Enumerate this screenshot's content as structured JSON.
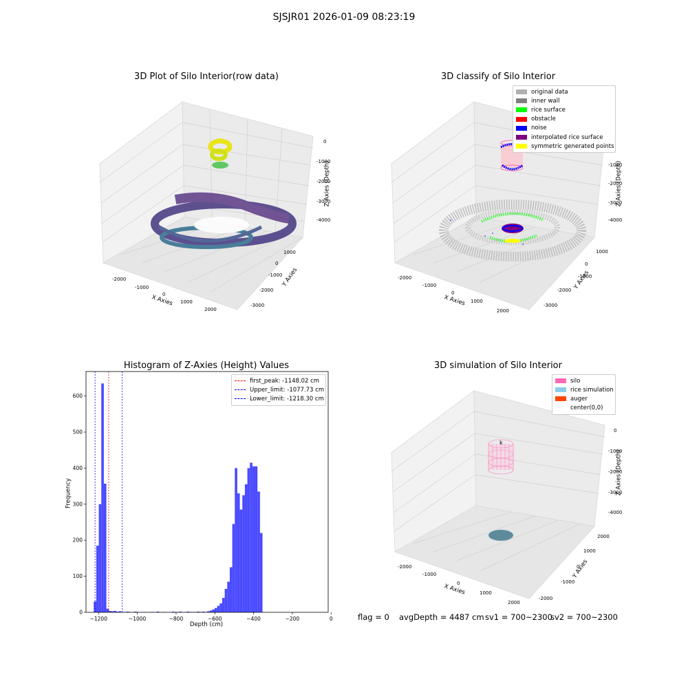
{
  "figure": {
    "suptitle": "SJSJR01 2026-01-09 08:23:19",
    "footer": {
      "flag": "flag = 0",
      "avg_depth": "avgDepth = 4487 cm",
      "sv1": "sv1 = 700~2300",
      "sv2": "sv2 = 700~2300"
    }
  },
  "chart_data": [
    {
      "type": "scatter",
      "title": "3D Plot of Silo Interior(row data)",
      "xlabel": "X Axies",
      "ylabel": "Y Axies",
      "zlabel": "Z Axies (Depth)",
      "xticks": [
        "-2000",
        "-1000",
        "0",
        "1000",
        "2000"
      ],
      "yticks": [
        "1000",
        "0",
        "-1000",
        "-2000",
        "-3000"
      ],
      "zticks": [
        "0",
        "-1000",
        "-2000",
        "-3000",
        "-4000"
      ],
      "colormap": "viridis"
    },
    {
      "type": "scatter",
      "title": "3D classify of Silo Interior",
      "xlabel": "X Axies",
      "ylabel": "Y Axies",
      "zlabel": "Z Axies (Depth)",
      "xticks": [
        "-2000",
        "-1000",
        "0",
        "1000",
        "2000"
      ],
      "yticks": [
        "1000",
        "0",
        "-1000",
        "-2000",
        "-3000"
      ],
      "zticks": [
        "-1000",
        "-2000",
        "-3000",
        "-4000"
      ],
      "legend": [
        {
          "label": "original data",
          "color": "#b0b0b0"
        },
        {
          "label": "inner wall",
          "color": "#808080"
        },
        {
          "label": "rice surface",
          "color": "#00ff00"
        },
        {
          "label": "obstacle",
          "color": "#ff0000"
        },
        {
          "label": "noise",
          "color": "#0000ff"
        },
        {
          "label": "interpolated rice surface",
          "color": "#800080"
        },
        {
          "label": "symmetric generated points",
          "color": "#ffff00"
        }
      ]
    },
    {
      "type": "bar",
      "title": "Histogram of Z-Axies (Height) Values",
      "xlabel": "Depth (cm)",
      "ylabel": "Frequency",
      "xlim": [
        -1265,
        -15
      ],
      "ylim": [
        0,
        668
      ],
      "xticks": [
        -1200,
        -1000,
        -800,
        -600,
        -400,
        -200,
        0
      ],
      "yticks": [
        0,
        100,
        200,
        300,
        400,
        500,
        600
      ],
      "bar_color": "#4b4bff",
      "bin_edges": [
        -1225,
        -1212,
        -1199,
        -1186,
        -1173,
        -1160,
        -1147,
        -1134,
        -1121,
        -1108,
        -1095,
        -1082,
        -1069,
        -1056,
        -1043,
        -1030,
        -1017,
        -1004,
        -991,
        -978,
        -965,
        -952,
        -939,
        -926,
        -913,
        -900,
        -887,
        -874,
        -861,
        -848,
        -835,
        -822,
        -809,
        -796,
        -783,
        -770,
        -757,
        -744,
        -731,
        -718,
        -705,
        -692,
        -679,
        -666,
        -653,
        -640,
        -627,
        -614,
        -601,
        -588,
        -575,
        -562,
        -549,
        -536,
        -523,
        -510,
        -497,
        -484,
        -471,
        -458,
        -445,
        -432,
        -419,
        -406,
        -393,
        -380,
        -367,
        -354,
        -341,
        -328,
        -315,
        -302,
        -289,
        -276,
        -263,
        -250,
        -237,
        -224,
        -211,
        -198,
        -185,
        -172,
        -159,
        -146,
        -133,
        -120,
        -107,
        -94,
        -81,
        -68,
        -55
      ],
      "values": [
        30,
        185,
        300,
        635,
        357,
        10,
        4,
        3,
        4,
        2,
        3,
        0,
        1,
        2,
        1,
        0,
        2,
        1,
        0,
        1,
        1,
        0,
        1,
        1,
        0,
        2,
        0,
        1,
        0,
        0,
        0,
        2,
        1,
        1,
        2,
        0,
        1,
        2,
        1,
        1,
        1,
        2,
        1,
        2,
        1,
        3,
        5,
        8,
        12,
        18,
        25,
        40,
        65,
        85,
        125,
        245,
        400,
        330,
        285,
        325,
        355,
        400,
        415,
        405,
        405,
        335,
        220,
        0,
        0,
        0,
        0,
        0,
        0,
        0,
        0,
        0,
        0,
        0,
        0,
        0,
        0,
        0,
        0,
        0,
        0,
        0,
        0,
        0,
        0,
        0
      ],
      "vlines": [
        {
          "label": "first_peak: -1148.02 cm",
          "x": -1148.02,
          "color": "#ff0000"
        },
        {
          "label": "Upper_limit: -1077.73 cm",
          "x": -1077.73,
          "color": "#0000ff"
        },
        {
          "label": "Lower_limit: -1218.30 cm",
          "x": -1218.3,
          "color": "#0000ff"
        }
      ]
    },
    {
      "type": "scatter",
      "title": "3D simulation of Silo Interior",
      "xlabel": "X Axies",
      "ylabel": "Y Axies",
      "zlabel": "Z Axies (Depth)",
      "xticks": [
        "-2000",
        "-1000",
        "0",
        "1000",
        "2000"
      ],
      "yticks": [
        "2000",
        "1000",
        "0",
        "-1000",
        "-2000"
      ],
      "zticks": [
        "0",
        "-1000",
        "-2000",
        "-3000",
        "-4000"
      ],
      "legend": [
        {
          "label": "silo",
          "color": "#ff69b4"
        },
        {
          "label": "rice simulation",
          "color": "#87ceeb"
        },
        {
          "label": "auger",
          "color": "#ff4500"
        },
        {
          "label": "center(0,0)",
          "color": ""
        }
      ]
    }
  ]
}
